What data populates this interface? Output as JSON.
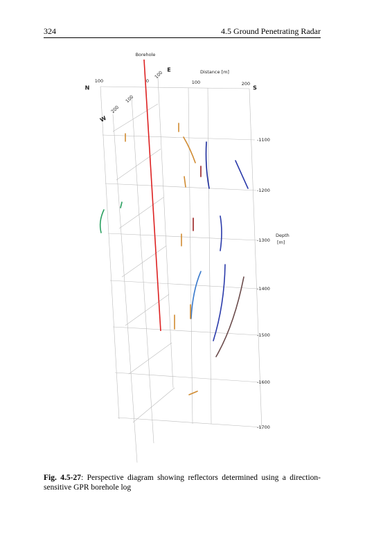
{
  "header": {
    "page_number": "324",
    "section": "4.5 Ground Penetrating Radar"
  },
  "figure": {
    "borehole_label": "Borehole",
    "distance_label": "Distance [m]",
    "north": "N",
    "south": "S",
    "west": "W",
    "east": "E",
    "distance_ticks": [
      "100",
      "0",
      "100",
      "200"
    ],
    "ew_ticks": [
      "100",
      "100",
      "200"
    ],
    "depth_ticks": [
      "-1100",
      "-1200",
      "-1300",
      "-1400",
      "-1500",
      "-1600",
      "-1700"
    ],
    "depth_label": "Depth",
    "depth_unit": "[m]"
  },
  "caption": {
    "label": "Fig. 4.5-27",
    "text": ": Perspective diagram showing reflectors determined using a direction-sensitive GPR borehole log"
  }
}
